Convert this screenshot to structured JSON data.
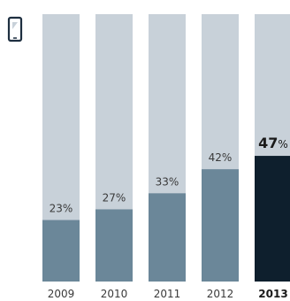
{
  "chart_data": {
    "type": "bar",
    "categories": [
      "2009",
      "2010",
      "2011",
      "2012",
      "2013"
    ],
    "values": [
      23,
      27,
      33,
      42,
      47
    ],
    "value_labels": [
      "23%",
      "27%",
      "33%",
      "42%",
      "47"
    ],
    "value_unit": "%",
    "highlight_index": 4,
    "ylim": [
      0,
      100
    ],
    "title": "",
    "xlabel": "",
    "ylabel": "",
    "grid": false,
    "legend": "none",
    "icon": "smartphone-icon",
    "colors": {
      "background_track": "#c8d1d9",
      "bar": "#6b8799",
      "bar_highlight": "#0e1f2d",
      "label_text": "#3a3a3a",
      "highlight_text": "#1a1a1a",
      "icon": "#1e2f40"
    }
  }
}
